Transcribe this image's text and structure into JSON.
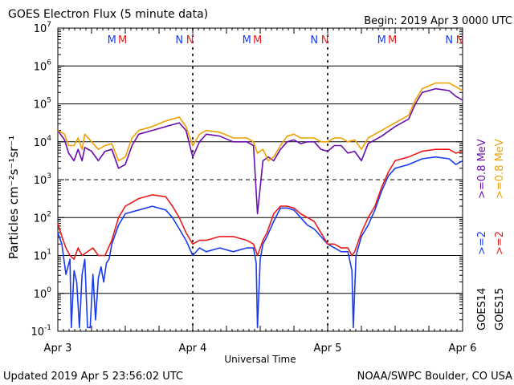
{
  "header": {
    "title": "GOES Electron Flux (5 minute data)",
    "begin": "Begin: 2019 Apr 3 0000 UTC"
  },
  "footer": {
    "updated": "Updated 2019 Apr  5 23:56:02 UTC",
    "credit": "NOAA/SWPC Boulder, CO USA"
  },
  "colors": {
    "goes14_08": "#6a0dad",
    "goes15_08": "#f0a000",
    "goes14_2": "#1a3cf0",
    "goes15_2": "#e81a1a",
    "grid": "#000000"
  },
  "chart_data": {
    "type": "line",
    "title": "GOES Electron Flux (5 minute data)",
    "xlabel": "Universal Time",
    "ylabel": "Particles cm⁻²s⁻¹sr⁻¹",
    "yscale": "log",
    "ylim": [
      0.1,
      10000000
    ],
    "xlim": [
      0,
      3
    ],
    "x_ticks": [
      {
        "x": 0,
        "label": "Apr 3"
      },
      {
        "x": 1,
        "label": "Apr 4"
      },
      {
        "x": 2,
        "label": "Apr 5"
      },
      {
        "x": 3,
        "label": "Apr 6"
      }
    ],
    "y_ticks": [
      {
        "exp": -1,
        "base": "10",
        "power": "-1"
      },
      {
        "exp": 0,
        "base": "10",
        "power": "0"
      },
      {
        "exp": 1,
        "base": "10",
        "power": "1"
      },
      {
        "exp": 2,
        "base": "10",
        "power": "2"
      },
      {
        "exp": 3,
        "base": "10",
        "power": "3"
      },
      {
        "exp": 4,
        "base": "10",
        "power": "4"
      },
      {
        "exp": 5,
        "base": "10",
        "power": "5"
      },
      {
        "exp": 6,
        "base": "10",
        "power": "6"
      },
      {
        "exp": 7,
        "base": "10",
        "power": "7"
      }
    ],
    "threshold_line": 1000,
    "mn_markers": [
      {
        "x": 0.4,
        "text": "M",
        "series": "GOES14"
      },
      {
        "x": 0.48,
        "text": "M",
        "series": "GOES15"
      },
      {
        "x": 0.9,
        "text": "N",
        "series": "GOES14"
      },
      {
        "x": 0.98,
        "text": "N",
        "series": "GOES15"
      },
      {
        "x": 1.4,
        "text": "M",
        "series": "GOES14"
      },
      {
        "x": 1.48,
        "text": "M",
        "series": "GOES15"
      },
      {
        "x": 1.9,
        "text": "N",
        "series": "GOES14"
      },
      {
        "x": 1.98,
        "text": "N",
        "series": "GOES15"
      },
      {
        "x": 2.4,
        "text": "M",
        "series": "GOES14"
      },
      {
        "x": 2.48,
        "text": "M",
        "series": "GOES15"
      },
      {
        "x": 2.9,
        "text": "N",
        "series": "GOES14"
      },
      {
        "x": 2.98,
        "text": "N",
        "series": "GOES15"
      }
    ],
    "legend": {
      "placement": "right",
      "groups": [
        {
          "label": "GOES14",
          "entries": [
            {
              "text": ">=2",
              "series": "GOES14 >=2 MeV"
            },
            {
              "text": ">=0.8  MeV",
              "series": "GOES14 >=0.8 MeV"
            }
          ]
        },
        {
          "label": "GOES15",
          "entries": [
            {
              "text": ">=2",
              "series": "GOES15 >=2 MeV"
            },
            {
              "text": ">=0.8  MeV",
              "series": "GOES15 >=0.8 MeV"
            }
          ]
        }
      ]
    },
    "series": [
      {
        "name": "GOES14 >=0.8 MeV",
        "color": "#6a0dad",
        "points": [
          [
            0,
            4.3
          ],
          [
            0.05,
            4.05
          ],
          [
            0.08,
            3.7
          ],
          [
            0.12,
            3.5
          ],
          [
            0.15,
            3.8
          ],
          [
            0.18,
            3.5
          ],
          [
            0.2,
            3.85
          ],
          [
            0.25,
            3.75
          ],
          [
            0.3,
            3.5
          ],
          [
            0.35,
            3.75
          ],
          [
            0.4,
            3.8
          ],
          [
            0.45,
            3.3
          ],
          [
            0.5,
            3.4
          ],
          [
            0.55,
            3.9
          ],
          [
            0.6,
            4.2
          ],
          [
            0.7,
            4.3
          ],
          [
            0.8,
            4.4
          ],
          [
            0.9,
            4.5
          ],
          [
            0.95,
            4.3
          ],
          [
            1.0,
            3.6
          ],
          [
            1.05,
            4.0
          ],
          [
            1.1,
            4.2
          ],
          [
            1.2,
            4.15
          ],
          [
            1.3,
            4.0
          ],
          [
            1.4,
            4.0
          ],
          [
            1.45,
            3.9
          ],
          [
            1.48,
            2.1
          ],
          [
            1.52,
            3.5
          ],
          [
            1.56,
            3.6
          ],
          [
            1.6,
            3.5
          ],
          [
            1.65,
            3.8
          ],
          [
            1.7,
            4.0
          ],
          [
            1.75,
            4.05
          ],
          [
            1.8,
            3.95
          ],
          [
            1.85,
            4.0
          ],
          [
            1.9,
            4.0
          ],
          [
            1.95,
            3.8
          ],
          [
            2.0,
            3.75
          ],
          [
            2.05,
            3.9
          ],
          [
            2.1,
            3.9
          ],
          [
            2.15,
            3.7
          ],
          [
            2.2,
            3.75
          ],
          [
            2.25,
            3.5
          ],
          [
            2.3,
            3.95
          ],
          [
            2.4,
            4.15
          ],
          [
            2.5,
            4.4
          ],
          [
            2.6,
            4.6
          ],
          [
            2.65,
            5.0
          ],
          [
            2.7,
            5.3
          ],
          [
            2.8,
            5.4
          ],
          [
            2.9,
            5.35
          ],
          [
            2.95,
            5.2
          ],
          [
            3.0,
            5.1
          ]
        ]
      },
      {
        "name": "GOES15 >=0.8 MeV",
        "color": "#f0a000",
        "points": [
          [
            0,
            4.3
          ],
          [
            0.05,
            4.2
          ],
          [
            0.08,
            3.9
          ],
          [
            0.12,
            3.9
          ],
          [
            0.15,
            4.1
          ],
          [
            0.18,
            3.8
          ],
          [
            0.2,
            4.2
          ],
          [
            0.25,
            4.0
          ],
          [
            0.3,
            3.8
          ],
          [
            0.35,
            3.9
          ],
          [
            0.4,
            3.95
          ],
          [
            0.45,
            3.5
          ],
          [
            0.5,
            3.6
          ],
          [
            0.55,
            4.1
          ],
          [
            0.6,
            4.3
          ],
          [
            0.7,
            4.4
          ],
          [
            0.8,
            4.55
          ],
          [
            0.9,
            4.65
          ],
          [
            0.95,
            4.4
          ],
          [
            1.0,
            3.9
          ],
          [
            1.05,
            4.2
          ],
          [
            1.1,
            4.3
          ],
          [
            1.2,
            4.25
          ],
          [
            1.3,
            4.1
          ],
          [
            1.4,
            4.1
          ],
          [
            1.45,
            4.0
          ],
          [
            1.48,
            3.7
          ],
          [
            1.52,
            3.8
          ],
          [
            1.56,
            3.5
          ],
          [
            1.6,
            3.6
          ],
          [
            1.65,
            3.9
          ],
          [
            1.7,
            4.15
          ],
          [
            1.75,
            4.2
          ],
          [
            1.8,
            4.1
          ],
          [
            1.85,
            4.1
          ],
          [
            1.9,
            4.1
          ],
          [
            1.95,
            4.0
          ],
          [
            2.0,
            4.0
          ],
          [
            2.05,
            4.1
          ],
          [
            2.1,
            4.1
          ],
          [
            2.15,
            4.0
          ],
          [
            2.2,
            4.05
          ],
          [
            2.25,
            3.8
          ],
          [
            2.3,
            4.1
          ],
          [
            2.4,
            4.3
          ],
          [
            2.5,
            4.5
          ],
          [
            2.6,
            4.7
          ],
          [
            2.65,
            5.1
          ],
          [
            2.7,
            5.4
          ],
          [
            2.8,
            5.55
          ],
          [
            2.9,
            5.55
          ],
          [
            2.95,
            5.45
          ],
          [
            3.0,
            5.35
          ]
        ]
      },
      {
        "name": "GOES14 >=2 MeV",
        "color": "#1a3cf0",
        "points": [
          [
            0,
            1.6
          ],
          [
            0.03,
            1.3
          ],
          [
            0.06,
            0.5
          ],
          [
            0.09,
            0.9
          ],
          [
            0.1,
            -0.9
          ],
          [
            0.12,
            0.6
          ],
          [
            0.14,
            0.3
          ],
          [
            0.16,
            -0.9
          ],
          [
            0.18,
            0.5
          ],
          [
            0.2,
            0.9
          ],
          [
            0.22,
            -0.9
          ],
          [
            0.24,
            -0.9
          ],
          [
            0.26,
            0.5
          ],
          [
            0.28,
            -0.7
          ],
          [
            0.3,
            0.4
          ],
          [
            0.32,
            0.7
          ],
          [
            0.34,
            0.3
          ],
          [
            0.36,
            0.8
          ],
          [
            0.38,
            0.9
          ],
          [
            0.4,
            1.3
          ],
          [
            0.45,
            1.8
          ],
          [
            0.5,
            2.1
          ],
          [
            0.6,
            2.2
          ],
          [
            0.7,
            2.3
          ],
          [
            0.8,
            2.2
          ],
          [
            0.85,
            2.0
          ],
          [
            0.9,
            1.7
          ],
          [
            0.95,
            1.4
          ],
          [
            1.0,
            1.0
          ],
          [
            1.05,
            1.2
          ],
          [
            1.1,
            1.1
          ],
          [
            1.2,
            1.2
          ],
          [
            1.3,
            1.1
          ],
          [
            1.4,
            1.2
          ],
          [
            1.45,
            1.2
          ],
          [
            1.47,
            0.8
          ],
          [
            1.48,
            -0.9
          ],
          [
            1.5,
            0.9
          ],
          [
            1.52,
            1.3
          ],
          [
            1.55,
            1.5
          ],
          [
            1.6,
            1.9
          ],
          [
            1.65,
            2.25
          ],
          [
            1.7,
            2.25
          ],
          [
            1.75,
            2.2
          ],
          [
            1.8,
            2.0
          ],
          [
            1.85,
            1.8
          ],
          [
            1.9,
            1.7
          ],
          [
            1.95,
            1.5
          ],
          [
            2.0,
            1.3
          ],
          [
            2.05,
            1.2
          ],
          [
            2.1,
            1.1
          ],
          [
            2.15,
            1.1
          ],
          [
            2.18,
            0.6
          ],
          [
            2.19,
            -0.9
          ],
          [
            2.21,
            1.0
          ],
          [
            2.25,
            1.5
          ],
          [
            2.3,
            1.8
          ],
          [
            2.35,
            2.2
          ],
          [
            2.4,
            2.7
          ],
          [
            2.45,
            3.1
          ],
          [
            2.5,
            3.3
          ],
          [
            2.6,
            3.4
          ],
          [
            2.7,
            3.55
          ],
          [
            2.8,
            3.6
          ],
          [
            2.9,
            3.55
          ],
          [
            2.95,
            3.4
          ],
          [
            3.0,
            3.5
          ]
        ]
      },
      {
        "name": "GOES15 >=2 MeV",
        "color": "#e81a1a",
        "points": [
          [
            0,
            1.85
          ],
          [
            0.03,
            1.5
          ],
          [
            0.06,
            1.2
          ],
          [
            0.09,
            1.0
          ],
          [
            0.12,
            0.9
          ],
          [
            0.15,
            1.2
          ],
          [
            0.18,
            1.0
          ],
          [
            0.22,
            1.1
          ],
          [
            0.26,
            1.2
          ],
          [
            0.3,
            1.0
          ],
          [
            0.35,
            1.0
          ],
          [
            0.4,
            1.4
          ],
          [
            0.45,
            2.0
          ],
          [
            0.5,
            2.3
          ],
          [
            0.6,
            2.5
          ],
          [
            0.7,
            2.6
          ],
          [
            0.8,
            2.55
          ],
          [
            0.85,
            2.3
          ],
          [
            0.9,
            2.0
          ],
          [
            0.95,
            1.6
          ],
          [
            1.0,
            1.3
          ],
          [
            1.05,
            1.4
          ],
          [
            1.1,
            1.4
          ],
          [
            1.2,
            1.5
          ],
          [
            1.3,
            1.5
          ],
          [
            1.4,
            1.4
          ],
          [
            1.45,
            1.3
          ],
          [
            1.48,
            1.0
          ],
          [
            1.52,
            1.4
          ],
          [
            1.55,
            1.6
          ],
          [
            1.6,
            2.1
          ],
          [
            1.65,
            2.3
          ],
          [
            1.7,
            2.3
          ],
          [
            1.75,
            2.25
          ],
          [
            1.8,
            2.1
          ],
          [
            1.85,
            2.0
          ],
          [
            1.9,
            1.9
          ],
          [
            1.95,
            1.6
          ],
          [
            2.0,
            1.3
          ],
          [
            2.05,
            1.3
          ],
          [
            2.1,
            1.2
          ],
          [
            2.15,
            1.2
          ],
          [
            2.18,
            1.0
          ],
          [
            2.2,
            1.1
          ],
          [
            2.25,
            1.6
          ],
          [
            2.3,
            2.0
          ],
          [
            2.35,
            2.3
          ],
          [
            2.4,
            2.8
          ],
          [
            2.45,
            3.2
          ],
          [
            2.5,
            3.5
          ],
          [
            2.6,
            3.6
          ],
          [
            2.7,
            3.75
          ],
          [
            2.8,
            3.8
          ],
          [
            2.9,
            3.8
          ],
          [
            2.95,
            3.7
          ],
          [
            3.0,
            3.75
          ]
        ]
      }
    ]
  }
}
